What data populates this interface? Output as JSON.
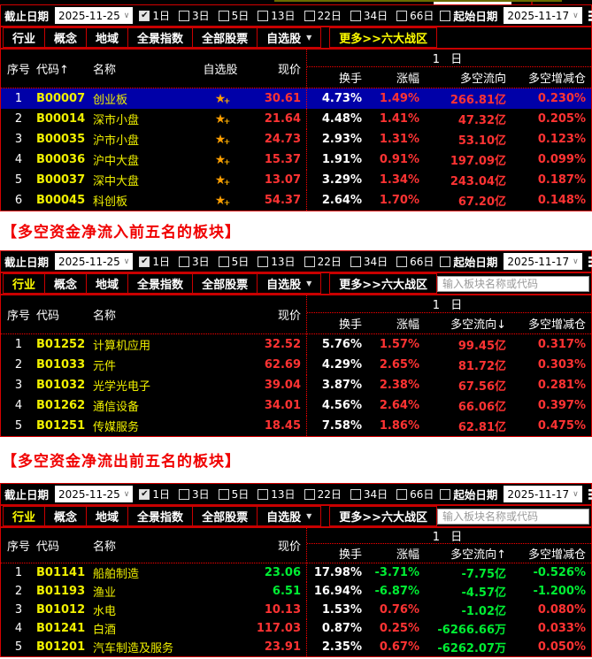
{
  "toolbar": {
    "end_date_label": "截止日期",
    "end_date_value": "2025-11-25",
    "periods": [
      {
        "label": "1日",
        "checked": true
      },
      {
        "label": "3日",
        "checked": false
      },
      {
        "label": "5日",
        "checked": false
      },
      {
        "label": "13日",
        "checked": false
      },
      {
        "label": "22日",
        "checked": false
      },
      {
        "label": "34日",
        "checked": false
      },
      {
        "label": "66日",
        "checked": false
      }
    ],
    "start_date_label": "起始日期",
    "start_date_checked": false,
    "start_date_value": "2025-11-17"
  },
  "tabs": {
    "items": [
      "行业",
      "概念",
      "地域",
      "全景指数",
      "全部股票",
      "自选股",
      "更多>>六大战区"
    ],
    "dropdown_tab": "自选股",
    "search_placeholder": "输入板块名称或代码"
  },
  "captions": {
    "inflow": "【多空资金净流入前五名的板块】",
    "outflow": "【多空资金净流出前五名的板块】"
  },
  "colors": {
    "border_red": "#d40000",
    "value_red": "#ff3333",
    "value_green": "#00ee33",
    "name_yellow": "#f0f000",
    "selected_row_blue": "#0000a8",
    "caption_red": "#f00000",
    "star_orange": "#ff9f00"
  },
  "panels": [
    {
      "active_tab": "更多>>六大战区",
      "show_watch_col": true,
      "show_search": false,
      "header": {
        "seq": "序号",
        "code": "代码↑",
        "name": "名称",
        "watch": "自选股",
        "price": "现价",
        "group": "1 日",
        "turnover": "换手",
        "change": "涨幅",
        "flow": "多空流向",
        "delta": "多空增减仓"
      },
      "rows": [
        {
          "seq": "1",
          "code": "B00007",
          "name": "创业板",
          "price": "30.61",
          "turnover": "4.73%",
          "change": "1.49%",
          "flow": "266.81亿",
          "delta": "0.230%",
          "selected": true,
          "price_color": "red",
          "change_color": "red",
          "flow_color": "red",
          "delta_color": "red"
        },
        {
          "seq": "2",
          "code": "B00014",
          "name": "深市小盘",
          "price": "21.64",
          "turnover": "4.48%",
          "change": "1.41%",
          "flow": "47.32亿",
          "delta": "0.205%",
          "selected": false,
          "price_color": "red",
          "change_color": "red",
          "flow_color": "red",
          "delta_color": "red"
        },
        {
          "seq": "3",
          "code": "B00035",
          "name": "沪市小盘",
          "price": "24.73",
          "turnover": "2.93%",
          "change": "1.31%",
          "flow": "53.10亿",
          "delta": "0.123%",
          "selected": false,
          "price_color": "red",
          "change_color": "red",
          "flow_color": "red",
          "delta_color": "red"
        },
        {
          "seq": "4",
          "code": "B00036",
          "name": "沪中大盘",
          "price": "15.37",
          "turnover": "1.91%",
          "change": "0.91%",
          "flow": "197.09亿",
          "delta": "0.099%",
          "selected": false,
          "price_color": "red",
          "change_color": "red",
          "flow_color": "red",
          "delta_color": "red"
        },
        {
          "seq": "5",
          "code": "B00037",
          "name": "深中大盘",
          "price": "13.07",
          "turnover": "3.29%",
          "change": "1.34%",
          "flow": "243.04亿",
          "delta": "0.187%",
          "selected": false,
          "price_color": "red",
          "change_color": "red",
          "flow_color": "red",
          "delta_color": "red"
        },
        {
          "seq": "6",
          "code": "B00045",
          "name": "科创板",
          "price": "54.37",
          "turnover": "2.64%",
          "change": "1.70%",
          "flow": "67.20亿",
          "delta": "0.148%",
          "selected": false,
          "price_color": "red",
          "change_color": "red",
          "flow_color": "red",
          "delta_color": "red"
        }
      ]
    },
    {
      "active_tab": "行业",
      "show_watch_col": false,
      "show_search": true,
      "header": {
        "seq": "序号",
        "code": "代码",
        "name": "名称",
        "price": "现价",
        "group": "1 日",
        "turnover": "换手",
        "change": "涨幅",
        "flow": "多空流向↓",
        "delta": "多空增减仓"
      },
      "rows": [
        {
          "seq": "1",
          "code": "B01252",
          "name": "计算机应用",
          "price": "32.52",
          "turnover": "5.76%",
          "change": "1.57%",
          "flow": "99.45亿",
          "delta": "0.317%",
          "selected": false,
          "price_color": "red",
          "change_color": "red",
          "flow_color": "red",
          "delta_color": "red"
        },
        {
          "seq": "2",
          "code": "B01033",
          "name": "元件",
          "price": "62.69",
          "turnover": "4.29%",
          "change": "2.65%",
          "flow": "81.72亿",
          "delta": "0.303%",
          "selected": false,
          "price_color": "red",
          "change_color": "red",
          "flow_color": "red",
          "delta_color": "red"
        },
        {
          "seq": "3",
          "code": "B01032",
          "name": "光学光电子",
          "price": "39.04",
          "turnover": "3.87%",
          "change": "2.38%",
          "flow": "67.56亿",
          "delta": "0.281%",
          "selected": false,
          "price_color": "red",
          "change_color": "red",
          "flow_color": "red",
          "delta_color": "red"
        },
        {
          "seq": "4",
          "code": "B01262",
          "name": "通信设备",
          "price": "34.01",
          "turnover": "4.56%",
          "change": "2.64%",
          "flow": "66.06亿",
          "delta": "0.397%",
          "selected": false,
          "price_color": "red",
          "change_color": "red",
          "flow_color": "red",
          "delta_color": "red"
        },
        {
          "seq": "5",
          "code": "B01251",
          "name": "传媒服务",
          "price": "18.45",
          "turnover": "7.58%",
          "change": "1.86%",
          "flow": "62.81亿",
          "delta": "0.475%",
          "selected": false,
          "price_color": "red",
          "change_color": "red",
          "flow_color": "red",
          "delta_color": "red"
        }
      ]
    },
    {
      "active_tab": "行业",
      "show_watch_col": false,
      "show_search": true,
      "header": {
        "seq": "序号",
        "code": "代码",
        "name": "名称",
        "price": "现价",
        "group": "1 日",
        "turnover": "换手",
        "change": "涨幅",
        "flow": "多空流向↑",
        "delta": "多空增减仓"
      },
      "rows": [
        {
          "seq": "1",
          "code": "B01141",
          "name": "船舶制造",
          "price": "23.06",
          "turnover": "17.98%",
          "change": "-3.71%",
          "flow": "-7.75亿",
          "delta": "-0.526%",
          "selected": false,
          "price_color": "green",
          "change_color": "green",
          "flow_color": "green",
          "delta_color": "green"
        },
        {
          "seq": "2",
          "code": "B01193",
          "name": "渔业",
          "price": "6.51",
          "turnover": "16.94%",
          "change": "-6.87%",
          "flow": "-4.57亿",
          "delta": "-1.200%",
          "selected": false,
          "price_color": "green",
          "change_color": "green",
          "flow_color": "green",
          "delta_color": "green"
        },
        {
          "seq": "3",
          "code": "B01012",
          "name": "水电",
          "price": "10.13",
          "turnover": "1.53%",
          "change": "0.76%",
          "flow": "-1.02亿",
          "delta": "0.080%",
          "selected": false,
          "price_color": "red",
          "change_color": "red",
          "flow_color": "green",
          "delta_color": "red"
        },
        {
          "seq": "4",
          "code": "B01241",
          "name": "白酒",
          "price": "117.03",
          "turnover": "0.87%",
          "change": "0.25%",
          "flow": "-6266.66万",
          "delta": "0.033%",
          "selected": false,
          "price_color": "red",
          "change_color": "red",
          "flow_color": "green",
          "delta_color": "red"
        },
        {
          "seq": "5",
          "code": "B01201",
          "name": "汽车制造及服务",
          "price": "23.91",
          "turnover": "2.35%",
          "change": "0.67%",
          "flow": "-6262.07万",
          "delta": "0.050%",
          "selected": false,
          "price_color": "red",
          "change_color": "red",
          "flow_color": "green",
          "delta_color": "red"
        }
      ]
    }
  ]
}
